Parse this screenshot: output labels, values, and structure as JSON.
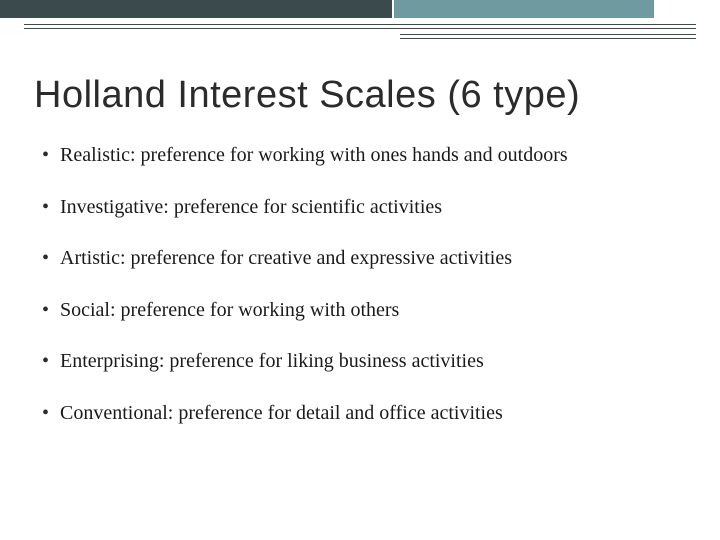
{
  "colors": {
    "bar_dark": "#3a4a4d",
    "bar_teal": "#6f9aa0",
    "text": "#1a1a1a",
    "title": "#2b2b2b",
    "background": "#ffffff"
  },
  "title": "Holland Interest Scales (6 type)",
  "bullets": [
    "Realistic: preference for working with ones hands and outdoors",
    "Investigative: preference for scientific activities",
    "Artistic: preference for creative and expressive activities",
    "Social: preference for working with others",
    "Enterprising: preference for liking business activities",
    "Conventional: preference for detail and office activities"
  ],
  "typography": {
    "title_fontsize": 38,
    "title_family": "Trebuchet MS",
    "body_fontsize": 20,
    "body_family": "Georgia"
  }
}
